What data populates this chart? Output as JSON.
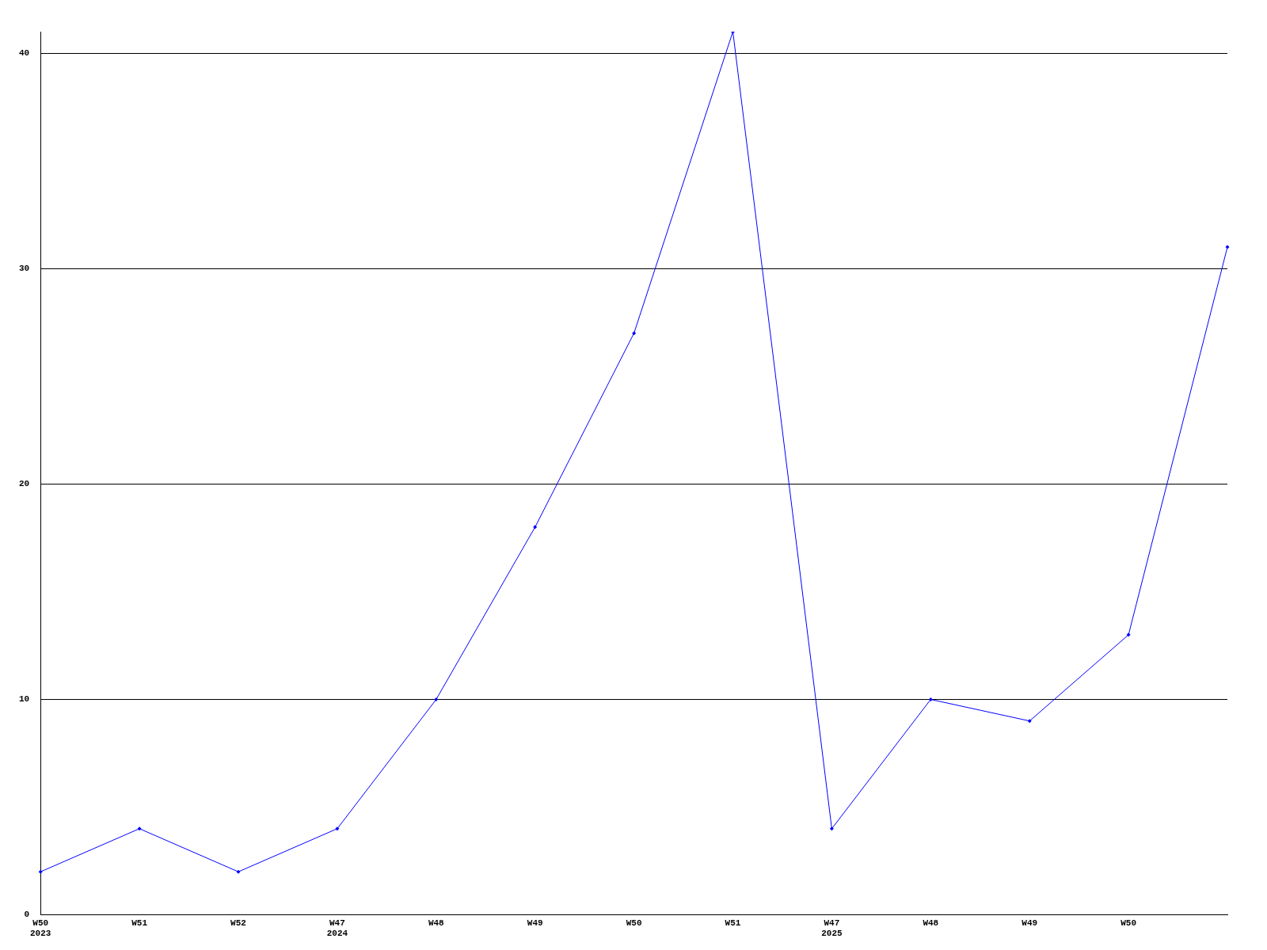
{
  "chart_data": {
    "type": "line",
    "categories": [
      "W50\n2023",
      "W51",
      "W52",
      "W47\n2024",
      "W48",
      "W49",
      "W50",
      "W51",
      "W47\n2025",
      "W48",
      "W49",
      "W50",
      null
    ],
    "series": [
      {
        "color": "#0000ff",
        "values": [
          2,
          4,
          2,
          4,
          10,
          18,
          27,
          41,
          4,
          10,
          9,
          13,
          31
        ]
      }
    ],
    "ylim": [
      0,
      41
    ],
    "yticks": [
      0,
      10,
      20,
      30,
      40
    ],
    "grid": "y",
    "legend": false,
    "marker": "diamond",
    "line_style": "solid"
  }
}
